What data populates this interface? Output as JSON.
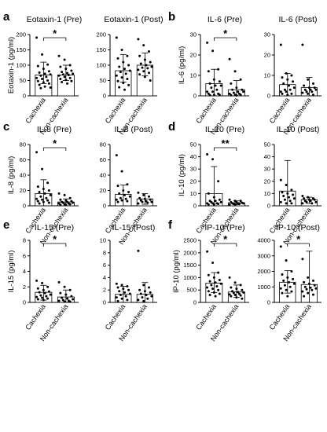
{
  "figure": {
    "panel_letters": [
      "a",
      "b",
      "c",
      "d",
      "e",
      "f"
    ]
  },
  "chart_data": [
    {
      "type": "bar",
      "panel": "a",
      "title": "Eotaxin-1 (Pre)",
      "ylabel": "Eotaxin-1 (pg/ml)",
      "ylim": [
        0,
        200
      ],
      "yticks": [
        "0",
        "50",
        "100",
        "150",
        "200"
      ],
      "categories": [
        "Cachexia",
        "Non-cachexia"
      ],
      "means": [
        68,
        68
      ],
      "sd_low": [
        40,
        50
      ],
      "sd_high": [
        110,
        100
      ],
      "points": [
        [
          190,
          135,
          102,
          97,
          88,
          80,
          76,
          72,
          70,
          66,
          62,
          58,
          55,
          50,
          48,
          44,
          40,
          36,
          30,
          27,
          25
        ],
        [
          130,
          118,
          100,
          95,
          88,
          82,
          78,
          74,
          72,
          70,
          68,
          66,
          62,
          58,
          55,
          52,
          48,
          45,
          40
        ]
      ],
      "significance": "*"
    },
    {
      "type": "bar",
      "panel": "a",
      "title": "Eotaxin-1 (Post)",
      "ylabel": "",
      "ylim": [
        0,
        200
      ],
      "yticks": [
        "0",
        "50",
        "100",
        "150",
        "200"
      ],
      "categories": [
        "Cachexia",
        "Non-cachexia"
      ],
      "means": [
        82,
        100
      ],
      "sd_low": [
        45,
        65
      ],
      "sd_high": [
        135,
        140
      ],
      "points": [
        [
          190,
          150,
          130,
          122,
          110,
          100,
          95,
          88,
          82,
          78,
          72,
          66,
          60,
          55,
          48,
          42,
          35,
          28,
          20
        ],
        [
          185,
          165,
          145,
          130,
          118,
          110,
          105,
          100,
          95,
          92,
          90,
          85,
          80,
          75,
          70,
          62,
          50
        ]
      ],
      "significance": ""
    },
    {
      "type": "bar",
      "panel": "b",
      "title": "IL-6 (Pre)",
      "ylabel": "IL-6 (pg/ml)",
      "ylim": [
        0,
        30
      ],
      "yticks": [
        "0",
        "10",
        "20",
        "30"
      ],
      "categories": [
        "Cachexia",
        "Non-cachexia"
      ],
      "means": [
        6,
        3
      ],
      "sd_low": [
        0,
        0
      ],
      "sd_high": [
        13,
        7.5
      ],
      "points": [
        [
          26,
          22,
          13,
          12,
          8,
          7,
          6,
          5,
          5,
          4,
          3,
          2,
          2,
          1,
          1,
          0.5,
          0.5,
          0.3
        ],
        [
          18,
          12,
          8,
          6,
          4,
          3,
          3,
          2,
          2,
          1.5,
          1,
          1,
          0.5,
          0.5,
          0.3,
          0.2
        ]
      ],
      "significance": "*"
    },
    {
      "type": "bar",
      "panel": "b",
      "title": "IL-6 (Post)",
      "ylabel": "",
      "ylim": [
        0,
        30
      ],
      "yticks": [
        "0",
        "10",
        "20",
        "30"
      ],
      "categories": [
        "Cachexia",
        "Non-cachexia"
      ],
      "means": [
        5.5,
        4
      ],
      "sd_low": [
        0,
        0
      ],
      "sd_high": [
        11,
        9
      ],
      "points": [
        [
          25,
          11,
          10,
          9,
          8,
          7,
          6,
          5,
          4,
          3,
          3,
          2,
          2,
          1,
          1,
          0.5
        ],
        [
          25,
          8,
          6,
          5,
          4,
          4,
          3,
          3,
          3,
          2,
          2,
          1.5,
          1,
          0.5
        ]
      ],
      "significance": ""
    },
    {
      "type": "bar",
      "panel": "c",
      "title": "IL-8 (Pre)",
      "ylabel": "IL-8 (pg/ml)",
      "ylim": [
        0,
        80
      ],
      "yticks": [
        "0",
        "20",
        "40",
        "60",
        "80"
      ],
      "categories": [
        "Cachexia",
        "Non-cachexia"
      ],
      "means": [
        16,
        5
      ],
      "sd_low": [
        0,
        0
      ],
      "sd_high": [
        34,
        9
      ],
      "points": [
        [
          70,
          48,
          30,
          25,
          22,
          20,
          18,
          16,
          14,
          12,
          10,
          9,
          8,
          7,
          6,
          5,
          4,
          3
        ],
        [
          16,
          14,
          10,
          8,
          7,
          6,
          5,
          5,
          4,
          4,
          3,
          3,
          2,
          2,
          1,
          1
        ]
      ],
      "significance": "*"
    },
    {
      "type": "bar",
      "panel": "c",
      "title": "IL-8 (Post)",
      "ylabel": "",
      "ylim": [
        0,
        80
      ],
      "yticks": [
        "0",
        "20",
        "40",
        "60",
        "80"
      ],
      "categories": [
        "Cachexia",
        "Non-cachexia"
      ],
      "means": [
        15,
        9
      ],
      "sd_low": [
        0,
        2
      ],
      "sd_high": [
        27,
        16
      ],
      "points": [
        [
          66,
          45,
          28,
          26,
          20,
          18,
          16,
          14,
          12,
          10,
          9,
          8,
          7,
          6,
          5
        ],
        [
          17,
          14,
          12,
          10,
          9,
          8,
          7,
          6,
          5,
          5,
          4,
          3
        ]
      ],
      "significance": ""
    },
    {
      "type": "bar",
      "panel": "d",
      "title": "IL-10 (Pre)",
      "ylabel": "IL-10 (pg/ml)",
      "ylim": [
        0,
        50
      ],
      "yticks": [
        "0",
        "10",
        "20",
        "30",
        "40",
        "50"
      ],
      "categories": [
        "Cachexia",
        "Non-cachexia"
      ],
      "means": [
        10,
        2.5
      ],
      "sd_low": [
        0,
        1
      ],
      "sd_high": [
        32,
        4
      ],
      "points": [
        [
          42,
          38,
          20,
          10,
          7,
          5,
          4,
          4,
          3,
          3,
          2,
          2,
          2,
          1.5,
          1,
          1
        ],
        [
          5,
          4,
          4,
          3,
          3,
          2.5,
          2,
          2,
          2,
          1.5,
          1.5,
          1,
          1
        ]
      ],
      "significance": "**"
    },
    {
      "type": "bar",
      "panel": "d",
      "title": "IL-10 (Post)",
      "ylabel": "",
      "ylim": [
        0,
        50
      ],
      "yticks": [
        "0",
        "10",
        "20",
        "30",
        "40",
        "50"
      ],
      "categories": [
        "Cachexia",
        "Non-cachexia"
      ],
      "means": [
        12,
        5
      ],
      "sd_low": [
        0,
        2
      ],
      "sd_high": [
        37,
        7
      ],
      "points": [
        [
          21,
          17,
          13,
          11,
          10,
          9,
          8,
          7,
          6,
          5,
          4,
          3,
          2,
          2
        ],
        [
          8,
          7,
          6,
          6,
          5,
          5,
          4,
          4,
          3,
          3,
          2,
          2
        ]
      ],
      "significance": ""
    },
    {
      "type": "bar",
      "panel": "e",
      "title": "IL-15 (Pre)",
      "ylabel": "IL-15 (pg/ml)",
      "ylim": [
        0,
        8
      ],
      "yticks": [
        "0",
        "2",
        "4",
        "6",
        "8"
      ],
      "categories": [
        "Cachexia",
        "Non-cachexia"
      ],
      "means": [
        1.3,
        0.7
      ],
      "sd_low": [
        0.3,
        0
      ],
      "sd_high": [
        2.2,
        1.6
      ],
      "points": [
        [
          2.8,
          2.5,
          2,
          1.8,
          1.6,
          1.4,
          1.3,
          1.2,
          1,
          0.9,
          0.8,
          0.7,
          0.6,
          0.5,
          0.4,
          0.3
        ],
        [
          2.6,
          2,
          1.6,
          1.2,
          1,
          0.8,
          0.6,
          0.5,
          0.4,
          0.3,
          0.2,
          0.2,
          0.1,
          0.1
        ]
      ],
      "significance": "*"
    },
    {
      "type": "bar",
      "panel": "e",
      "title": "IL-15 (Post)",
      "ylabel": "",
      "ylim": [
        0,
        10
      ],
      "yticks": [
        "0",
        "2",
        "4",
        "6",
        "8",
        "10"
      ],
      "categories": [
        "Cachexia",
        "Non-cachexia"
      ],
      "means": [
        1.3,
        1.3
      ],
      "sd_low": [
        0,
        0
      ],
      "sd_high": [
        2.6,
        3.2
      ],
      "points": [
        [
          3,
          2.8,
          2.6,
          2.4,
          2.2,
          2,
          1.8,
          1.6,
          1.4,
          1.2,
          1,
          0.8,
          0.6,
          0.4,
          0.2
        ],
        [
          8.3,
          2.8,
          2.4,
          2,
          1.8,
          1.6,
          1.4,
          1.2,
          1,
          0.8,
          0.6,
          0.4,
          0.2
        ]
      ],
      "significance": ""
    },
    {
      "type": "bar",
      "panel": "f",
      "title": "IP-10 (Pre)",
      "ylabel": "IP-10 (pg/ml)",
      "ylim": [
        0,
        2500
      ],
      "yticks": [
        "0",
        "500",
        "1000",
        "1500",
        "2000",
        "2500"
      ],
      "categories": [
        "Cachexia",
        "Non-cachexia"
      ],
      "means": [
        780,
        420
      ],
      "sd_low": [
        400,
        200
      ],
      "sd_high": [
        1200,
        700
      ],
      "points": [
        [
          2050,
          1600,
          1200,
          1100,
          1000,
          900,
          850,
          800,
          750,
          700,
          650,
          600,
          550,
          500,
          450,
          400,
          350,
          300,
          250
        ],
        [
          1000,
          800,
          700,
          600,
          550,
          500,
          450,
          420,
          400,
          380,
          350,
          320,
          300,
          280,
          250,
          200,
          150
        ]
      ],
      "significance": "*"
    },
    {
      "type": "bar",
      "panel": "f",
      "title": "IP-10 (Post)",
      "ylabel": "",
      "ylim": [
        0,
        4000
      ],
      "yticks": [
        "0",
        "1000",
        "2000",
        "3000",
        "4000"
      ],
      "categories": [
        "Cachexia",
        "Non-cachexia"
      ],
      "means": [
        1300,
        1150
      ],
      "sd_low": [
        600,
        0
      ],
      "sd_high": [
        2050,
        3300
      ],
      "points": [
        [
          3600,
          2700,
          2000,
          1800,
          1600,
          1500,
          1400,
          1300,
          1200,
          1100,
          1000,
          900,
          800,
          700,
          600,
          400
        ],
        [
          2800,
          1600,
          1400,
          1300,
          1200,
          1100,
          1000,
          950,
          900,
          850,
          800,
          700,
          600,
          500,
          400
        ]
      ],
      "significance": "*"
    }
  ]
}
